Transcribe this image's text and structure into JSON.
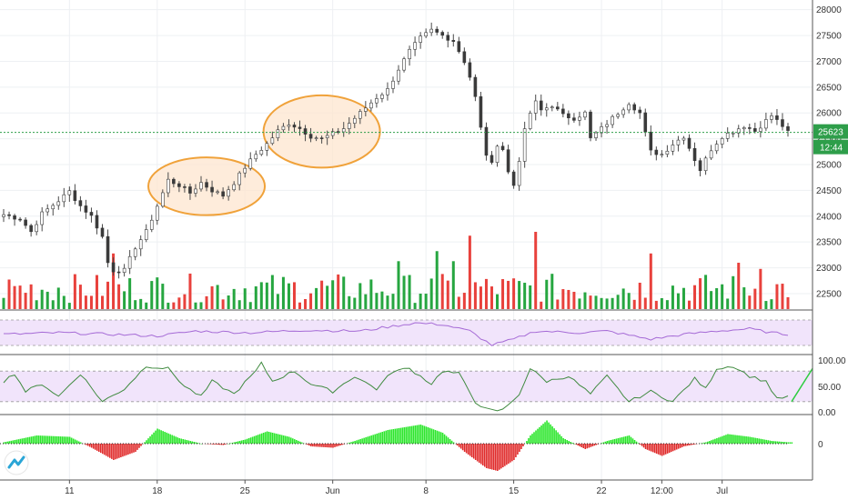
{
  "chart_data": {
    "type": "candlestick",
    "title": "",
    "colors": {
      "up": "#26a640",
      "down": "#e8413c",
      "wick": "#444444",
      "price_line": "#2e9e4a",
      "price_label_bg": "#2e9e4a",
      "highlight_fill": "#fde6cf",
      "highlight_stroke": "#f0a23a",
      "rsi_band": "#f1e4fb",
      "rsi_line": "#a56ad6",
      "stoch_line": "#3f8a3f",
      "macd_up": "#2be62b",
      "macd_down": "#e02a2a"
    },
    "price_axis": {
      "ticks": [
        "28000",
        "27500",
        "27000",
        "26500",
        "26000",
        "25500",
        "25000",
        "24500",
        "24000",
        "23500",
        "23000",
        "22500"
      ],
      "range": [
        22200,
        28100
      ]
    },
    "current_price": {
      "value": "25623",
      "countdown": "12:44",
      "numeric": 25623
    },
    "date_axis": {
      "labels": [
        {
          "text": "11",
          "index": 12
        },
        {
          "text": "18",
          "index": 28
        },
        {
          "text": "25",
          "index": 44
        },
        {
          "text": "Jun",
          "index": 60
        },
        {
          "text": "8",
          "index": 77
        },
        {
          "text": "15",
          "index": 93
        },
        {
          "text": "22",
          "index": 109
        },
        {
          "text": "12:00",
          "index": 120
        },
        {
          "text": "Jul",
          "index": 131
        }
      ]
    },
    "highlights": [
      {
        "center_index": 37,
        "center_price": 24580,
        "rx_bars": 9,
        "ry_price": 560
      },
      {
        "center_index": 58,
        "center_price": 25640,
        "rx_bars": 9,
        "ry_price": 700
      }
    ],
    "price_keypoints": [
      [
        0,
        24030
      ],
      [
        3,
        23950
      ],
      [
        5,
        23700
      ],
      [
        7,
        24050
      ],
      [
        10,
        24300
      ],
      [
        12,
        24480
      ],
      [
        14,
        24200
      ],
      [
        16,
        24000
      ],
      [
        18,
        23600
      ],
      [
        19,
        23100
      ],
      [
        20,
        22950
      ],
      [
        22,
        22950
      ],
      [
        24,
        23400
      ],
      [
        26,
        23700
      ],
      [
        28,
        24200
      ],
      [
        30,
        24700
      ],
      [
        32,
        24600
      ],
      [
        34,
        24450
      ],
      [
        36,
        24650
      ],
      [
        38,
        24500
      ],
      [
        40,
        24400
      ],
      [
        42,
        24650
      ],
      [
        44,
        24950
      ],
      [
        46,
        25200
      ],
      [
        48,
        25400
      ],
      [
        50,
        25650
      ],
      [
        52,
        25800
      ],
      [
        54,
        25700
      ],
      [
        56,
        25550
      ],
      [
        58,
        25500
      ],
      [
        60,
        25600
      ],
      [
        62,
        25700
      ],
      [
        64,
        25900
      ],
      [
        66,
        26100
      ],
      [
        68,
        26300
      ],
      [
        70,
        26450
      ],
      [
        72,
        26850
      ],
      [
        74,
        27200
      ],
      [
        76,
        27450
      ],
      [
        78,
        27600
      ],
      [
        80,
        27500
      ],
      [
        82,
        27400
      ],
      [
        84,
        27000
      ],
      [
        85,
        26700
      ],
      [
        86,
        26300
      ],
      [
        87,
        25700
      ],
      [
        88,
        25200
      ],
      [
        89,
        25000
      ],
      [
        90,
        25400
      ],
      [
        91,
        25300
      ],
      [
        92,
        24850
      ],
      [
        93,
        24600
      ],
      [
        94,
        25100
      ],
      [
        95,
        25650
      ],
      [
        96,
        26000
      ],
      [
        97,
        26200
      ],
      [
        98,
        26050
      ],
      [
        100,
        26150
      ],
      [
        102,
        25950
      ],
      [
        104,
        25900
      ],
      [
        106,
        26000
      ],
      [
        107,
        25500
      ],
      [
        108,
        25600
      ],
      [
        110,
        25800
      ],
      [
        112,
        26000
      ],
      [
        114,
        26200
      ],
      [
        116,
        26000
      ],
      [
        117,
        25600
      ],
      [
        118,
        25250
      ],
      [
        120,
        25200
      ],
      [
        122,
        25400
      ],
      [
        124,
        25550
      ],
      [
        126,
        25100
      ],
      [
        127,
        24900
      ],
      [
        129,
        25300
      ],
      [
        131,
        25550
      ],
      [
        133,
        25650
      ],
      [
        135,
        25750
      ],
      [
        137,
        25650
      ],
      [
        139,
        25850
      ],
      [
        140,
        25950
      ],
      [
        142,
        25750
      ],
      [
        143,
        25620
      ]
    ],
    "volume_spikes": [
      {
        "index": 20,
        "value": 0.72,
        "dir": "down"
      },
      {
        "index": 85,
        "value": 0.95,
        "dir": "down"
      },
      {
        "index": 79,
        "value": 0.75,
        "dir": "up"
      },
      {
        "index": 97,
        "value": 1.0,
        "dir": "down"
      },
      {
        "index": 72,
        "value": 0.62,
        "dir": "up"
      },
      {
        "index": 82,
        "value": 0.62,
        "dir": "up"
      },
      {
        "index": 118,
        "value": 0.72,
        "dir": "down"
      },
      {
        "index": 134,
        "value": 0.6,
        "dir": "down"
      },
      {
        "index": 138,
        "value": 0.52,
        "dir": "down"
      }
    ],
    "rsi_panel": {
      "series_keypoints": [
        [
          0,
          0.45
        ],
        [
          10,
          0.5
        ],
        [
          20,
          0.45
        ],
        [
          28,
          0.4
        ],
        [
          35,
          0.55
        ],
        [
          45,
          0.5
        ],
        [
          55,
          0.58
        ],
        [
          65,
          0.55
        ],
        [
          75,
          0.8
        ],
        [
          80,
          0.75
        ],
        [
          85,
          0.55
        ],
        [
          89,
          0.12
        ],
        [
          93,
          0.3
        ],
        [
          97,
          0.55
        ],
        [
          105,
          0.5
        ],
        [
          110,
          0.55
        ],
        [
          118,
          0.3
        ],
        [
          124,
          0.45
        ],
        [
          130,
          0.55
        ],
        [
          136,
          0.62
        ],
        [
          140,
          0.5
        ],
        [
          143,
          0.45
        ]
      ]
    },
    "stoch_panel": {
      "ticks": [
        "100.00",
        "50.00",
        "0.00"
      ],
      "series_keypoints": [
        [
          0,
          0.6
        ],
        [
          2,
          0.75
        ],
        [
          4,
          0.4
        ],
        [
          7,
          0.55
        ],
        [
          10,
          0.3
        ],
        [
          14,
          0.75
        ],
        [
          18,
          0.2
        ],
        [
          22,
          0.45
        ],
        [
          26,
          0.9
        ],
        [
          30,
          0.85
        ],
        [
          33,
          0.5
        ],
        [
          36,
          0.3
        ],
        [
          38,
          0.6
        ],
        [
          42,
          0.35
        ],
        [
          46,
          0.8
        ],
        [
          47,
          0.95
        ],
        [
          49,
          0.6
        ],
        [
          53,
          0.8
        ],
        [
          56,
          0.55
        ],
        [
          60,
          0.4
        ],
        [
          64,
          0.7
        ],
        [
          68,
          0.45
        ],
        [
          71,
          0.8
        ],
        [
          74,
          0.85
        ],
        [
          78,
          0.55
        ],
        [
          80,
          0.8
        ],
        [
          83,
          0.75
        ],
        [
          86,
          0.2
        ],
        [
          88,
          0.05
        ],
        [
          90,
          0.0
        ],
        [
          92,
          0.12
        ],
        [
          94,
          0.35
        ],
        [
          96,
          0.85
        ],
        [
          99,
          0.6
        ],
        [
          103,
          0.7
        ],
        [
          107,
          0.35
        ],
        [
          110,
          0.7
        ],
        [
          114,
          0.2
        ],
        [
          118,
          0.4
        ],
        [
          122,
          0.2
        ],
        [
          126,
          0.65
        ],
        [
          128,
          0.45
        ],
        [
          130,
          0.85
        ],
        [
          133,
          0.9
        ],
        [
          136,
          0.7
        ],
        [
          139,
          0.6
        ],
        [
          141,
          0.25
        ],
        [
          143,
          0.3
        ]
      ]
    },
    "macd_panel": {
      "zero_label": "0",
      "series_keypoints": [
        [
          0,
          0.05
        ],
        [
          6,
          0.3
        ],
        [
          12,
          0.25
        ],
        [
          16,
          -0.15
        ],
        [
          20,
          -0.6
        ],
        [
          24,
          -0.3
        ],
        [
          28,
          0.55
        ],
        [
          32,
          0.2
        ],
        [
          36,
          0.0
        ],
        [
          40,
          -0.05
        ],
        [
          44,
          0.15
        ],
        [
          48,
          0.45
        ],
        [
          52,
          0.25
        ],
        [
          56,
          -0.1
        ],
        [
          60,
          -0.15
        ],
        [
          64,
          0.1
        ],
        [
          70,
          0.5
        ],
        [
          76,
          0.7
        ],
        [
          80,
          0.4
        ],
        [
          84,
          -0.3
        ],
        [
          88,
          -0.9
        ],
        [
          90,
          -1.0
        ],
        [
          93,
          -0.6
        ],
        [
          96,
          0.3
        ],
        [
          99,
          0.85
        ],
        [
          102,
          0.2
        ],
        [
          106,
          -0.2
        ],
        [
          110,
          0.1
        ],
        [
          114,
          0.3
        ],
        [
          117,
          -0.2
        ],
        [
          120,
          -0.45
        ],
        [
          124,
          -0.1
        ],
        [
          128,
          0.05
        ],
        [
          132,
          0.35
        ],
        [
          136,
          0.25
        ],
        [
          140,
          0.1
        ],
        [
          143,
          0.05
        ]
      ]
    }
  }
}
